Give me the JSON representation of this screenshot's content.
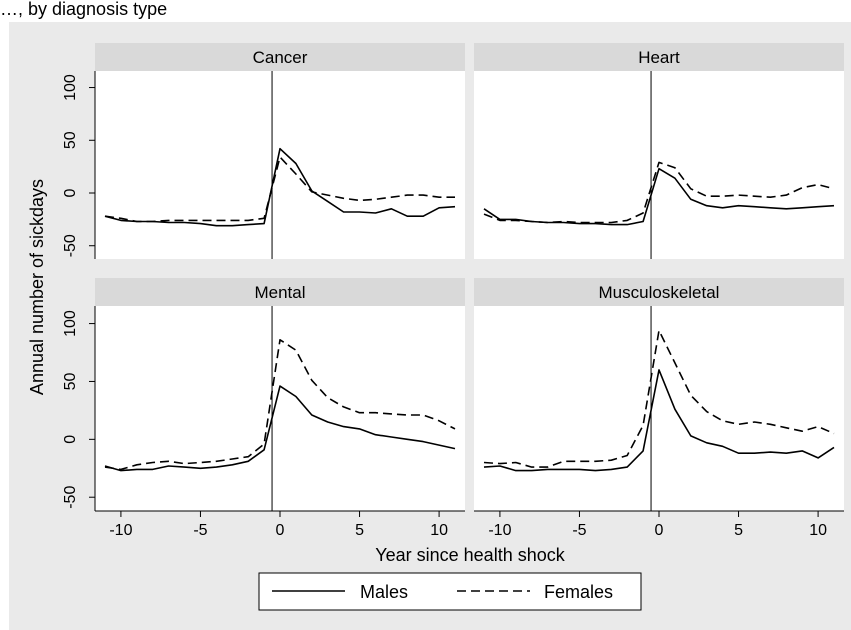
{
  "caption": "…, by diagnosis type",
  "chart_data": {
    "type": "line",
    "ylabel": "Annual number of sickdays",
    "xlabel": "Year since health shock",
    "xlim": [
      -11,
      11
    ],
    "ylim": [
      -55,
      110
    ],
    "x_ticks": [
      -10,
      -5,
      0,
      5,
      10
    ],
    "y_ticks": [
      -50,
      0,
      50,
      100
    ],
    "vline_x": -0.5,
    "legend": {
      "position": "bottom",
      "entries": [
        "Males",
        "Females"
      ]
    },
    "x": [
      -11,
      -10,
      -9,
      -8,
      -7,
      -6,
      -5,
      -4,
      -3,
      -2,
      -1,
      0,
      1,
      2,
      3,
      4,
      5,
      6,
      7,
      8,
      9,
      10,
      11
    ],
    "panels": [
      {
        "title": "Cancer",
        "series": [
          {
            "name": "Males",
            "dash": "solid",
            "values": [
              -22,
              -26,
              -27,
              -27,
              -28,
              -28,
              -29,
              -31,
              -31,
              -30,
              -29,
              42,
              28,
              2,
              -8,
              -18,
              -18,
              -19,
              -15,
              -22,
              -22,
              -14,
              -13
            ]
          },
          {
            "name": "Females",
            "dash": "dashed",
            "values": [
              -22,
              -24,
              -27,
              -27,
              -26,
              -26,
              -26,
              -26,
              -26,
              -26,
              -24,
              34,
              18,
              1,
              -2,
              -5,
              -7,
              -6,
              -4,
              -2,
              -2,
              -4,
              -4
            ]
          }
        ]
      },
      {
        "title": "Heart",
        "series": [
          {
            "name": "Males",
            "dash": "solid",
            "values": [
              -15,
              -25,
              -25,
              -27,
              -28,
              -28,
              -29,
              -29,
              -30,
              -30,
              -27,
              23,
              14,
              -6,
              -12,
              -14,
              -12,
              -13,
              -14,
              -15,
              -14,
              -13,
              -12
            ]
          },
          {
            "name": "Females",
            "dash": "dashed",
            "values": [
              -20,
              -26,
              -26,
              -27,
              -28,
              -27,
              -28,
              -28,
              -28,
              -26,
              -19,
              29,
              24,
              4,
              -3,
              -3,
              -2,
              -3,
              -4,
              -2,
              5,
              8,
              4
            ]
          }
        ]
      },
      {
        "title": "Mental",
        "series": [
          {
            "name": "Males",
            "dash": "solid",
            "values": [
              -23,
              -27,
              -26,
              -26,
              -23,
              -24,
              -25,
              -24,
              -22,
              -19,
              -9,
              46,
              37,
              21,
              15,
              11,
              9,
              4,
              2,
              0,
              -2,
              -5,
              -8
            ]
          },
          {
            "name": "Females",
            "dash": "dashed",
            "values": [
              -24,
              -26,
              -22,
              -20,
              -19,
              -21,
              -20,
              -19,
              -17,
              -15,
              -4,
              86,
              77,
              51,
              36,
              28,
              23,
              23,
              22,
              21,
              21,
              16,
              9
            ]
          }
        ]
      },
      {
        "title": "Musculoskeletal",
        "series": [
          {
            "name": "Males",
            "dash": "solid",
            "values": [
              -24,
              -23,
              -27,
              -27,
              -26,
              -26,
              -26,
              -27,
              -26,
              -24,
              -10,
              60,
              26,
              3,
              -3,
              -6,
              -12,
              -12,
              -11,
              -12,
              -10,
              -16,
              -7
            ]
          },
          {
            "name": "Females",
            "dash": "dashed",
            "values": [
              -20,
              -21,
              -20,
              -24,
              -24,
              -19,
              -19,
              -19,
              -18,
              -14,
              12,
              94,
              66,
              38,
              24,
              16,
              13,
              15,
              13,
              10,
              7,
              11,
              5
            ]
          }
        ]
      }
    ]
  }
}
